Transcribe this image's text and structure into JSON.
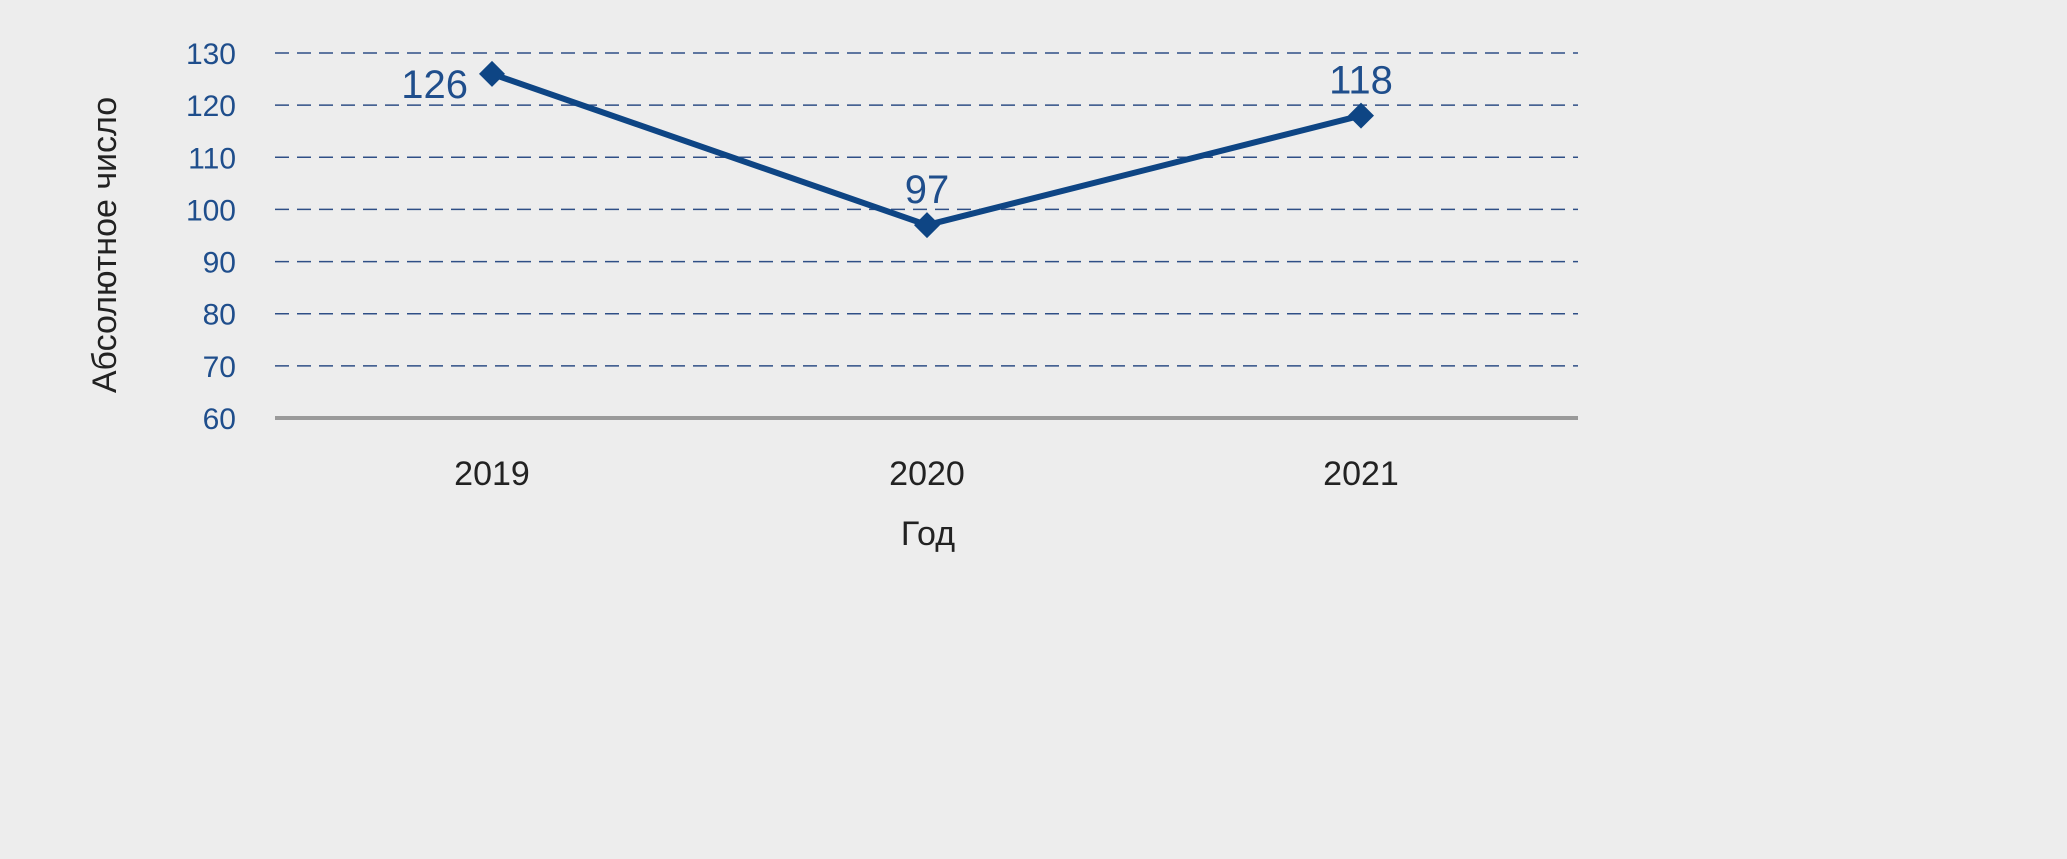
{
  "chart_data": {
    "type": "line",
    "title": "",
    "xlabel": "Год",
    "ylabel": "Абсолютное число",
    "categories": [
      "2019",
      "2020",
      "2021"
    ],
    "series": [
      {
        "values": [
          126,
          97,
          118
        ]
      }
    ],
    "data_labels": [
      "126",
      "97",
      "118"
    ],
    "ylim": [
      60,
      130
    ],
    "yticks": [
      60,
      70,
      80,
      90,
      100,
      110,
      120,
      130
    ],
    "grid": true,
    "grid_style": "dashed",
    "legend": "none",
    "marker": "diamond",
    "colors": {
      "line": "#0e4584",
      "grid": "#2f4f86",
      "baseline": "#9a9a9a",
      "tick_text": "#1f4e8c",
      "axis_text": "#222222"
    }
  }
}
